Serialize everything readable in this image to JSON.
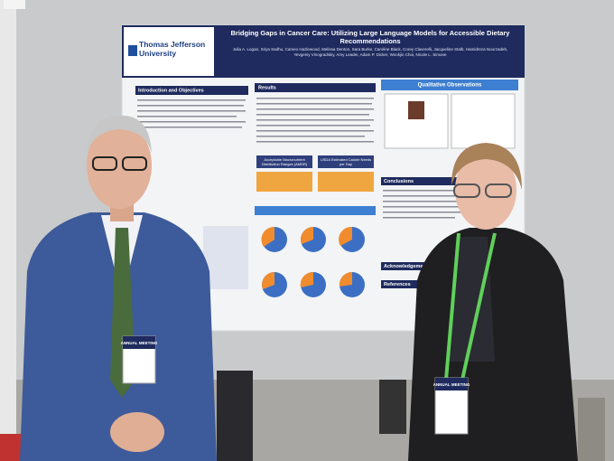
{
  "poster": {
    "institution": "Thomas Jefferson University",
    "title": "Bridging Gaps in Cancer Care: Utilizing Large Language Models for Accessible Dietary Recommendations",
    "authors": "Julia A. Logan, Sriya Sadhu, Cameo Hazlewood, Melissa Denton, Sara Burke, Caroline Black, Corey Claverelli, Jacqueline Stalb, Hamidreza Nourzadeh, Yevgeniy Vinogradskiy, Amy Leader, Adam P. Dicker, Wookjin Choi, Nicole L. Simone",
    "sections": [
      "Introduction and Objectives",
      "Results",
      "Qualitative Observations",
      "Conclusions",
      "Acknowledgements",
      "References"
    ],
    "figure_headers": [
      "Acceptable Macronutrient Distribution Ranges (AMDR)",
      "USDA Estimated Calorie Needs per Day"
    ]
  },
  "badges": [
    "ANNUAL MEETING",
    "ANNUAL MEETING"
  ]
}
